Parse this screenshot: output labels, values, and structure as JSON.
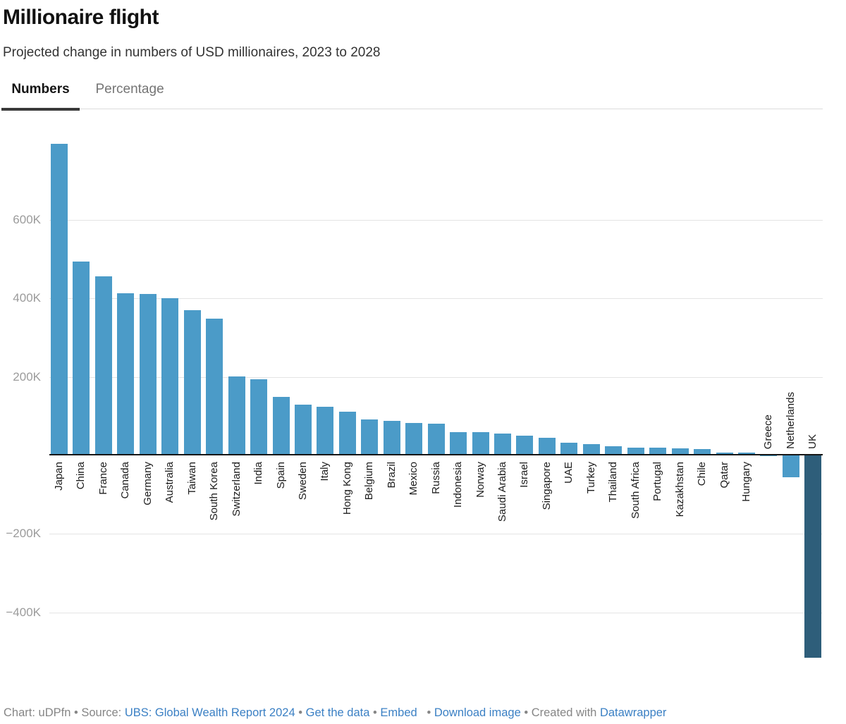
{
  "header": {
    "title": "Millionaire flight",
    "subtitle": "Projected change in numbers of USD millionaires, 2023 to 2028"
  },
  "tabs": [
    {
      "label": "Numbers",
      "active": true
    },
    {
      "label": "Percentage",
      "active": false
    }
  ],
  "chart_data": {
    "type": "bar",
    "title": "Millionaire flight",
    "subtitle": "Projected change in numbers of USD millionaires, 2023 to 2028",
    "unit": "thousands of USD millionaires (K)",
    "categories": [
      "Japan",
      "China",
      "France",
      "Canada",
      "Germany",
      "Australia",
      "Taiwan",
      "South Korea",
      "Switzerland",
      "India",
      "Spain",
      "Sweden",
      "Italy",
      "Hong Kong",
      "Belgium",
      "Brazil",
      "Mexico",
      "Russia",
      "Indonesia",
      "Norway",
      "Saudi Arabia",
      "Israel",
      "Singapore",
      "UAE",
      "Turkey",
      "Thailand",
      "South Africa",
      "Portugal",
      "Kazakhstan",
      "Chile",
      "Qatar",
      "Hungary",
      "Greece",
      "Netherlands",
      "UK"
    ],
    "values_thousands": [
      790,
      490,
      452,
      410,
      407,
      396,
      366,
      345,
      198,
      191,
      146,
      125,
      121,
      107,
      88,
      84,
      79,
      78,
      56,
      55,
      52,
      46,
      41,
      29,
      26,
      20,
      17,
      17,
      15,
      12,
      4,
      3,
      -1,
      -55,
      -515
    ],
    "highlight_category": "UK",
    "y_axis": {
      "ticks": [
        {
          "label": "600K",
          "value": 600
        },
        {
          "label": "400K",
          "value": 400
        },
        {
          "label": "200K",
          "value": 200
        },
        {
          "label": "−200K",
          "value": -200
        },
        {
          "label": "−400K",
          "value": -400
        }
      ],
      "range_thousands": [
        -565,
        850
      ]
    },
    "grid": true,
    "legend": "none",
    "colors": {
      "bar": "#4b9bc8",
      "highlight_bar": "#2e5e7a"
    }
  },
  "footer": {
    "chart_credit": "Chart: uDPfn",
    "separator": "•",
    "source_label": "Source:",
    "source_link": "UBS: Global Wealth Report 2024",
    "get_data_link": "Get the data",
    "embed_link": "Embed",
    "download_image_link": "Download image",
    "created_with": "Created with",
    "datawrapper_link": "Datawrapper"
  },
  "colors": {
    "bar": "#4b9bc8",
    "highlight_bar": "#2e5e7a",
    "link": "#3b80c4",
    "axis": "#161616",
    "gridline": "#e4e4e4",
    "tab_active_underline": "#3a3a3a"
  }
}
